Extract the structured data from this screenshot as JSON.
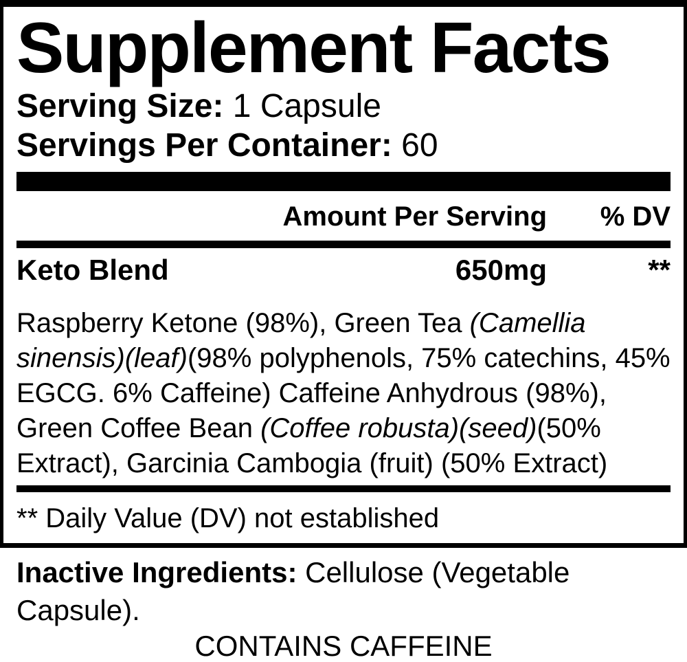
{
  "colors": {
    "ink": "#000000",
    "paper": "#ffffff"
  },
  "label": {
    "title": "Supplement Facts",
    "serving_size_label": "Serving Size:",
    "serving_size_value": "1 Capsule",
    "servings_per_container_label": "Servings Per Container:",
    "servings_per_container_value": "60",
    "column_header": {
      "amount": "Amount Per Serving",
      "dv": "% DV"
    },
    "blend": {
      "name": "Keto Blend",
      "amount": "650mg",
      "dv": "**"
    },
    "ingredients_lines": [
      [
        {
          "text": "Raspberry Ketone (98%), Green Tea ",
          "italic": false
        },
        {
          "text": "(Camellia",
          "italic": true
        }
      ],
      [
        {
          "text": "sinensis)(leaf)",
          "italic": true
        },
        {
          "text": "(98% polyphenols, 75% catechins, 45%",
          "italic": false
        }
      ],
      [
        {
          "text": "EGCG. 6% Caffeine) Caffeine Anhydrous (98%),",
          "italic": false
        }
      ],
      [
        {
          "text": "Green Coffee Bean ",
          "italic": false
        },
        {
          "text": "(Coffee robusta)(seed)",
          "italic": true
        },
        {
          "text": "(50%",
          "italic": false
        }
      ],
      [
        {
          "text": "Extract), Garcinia Cambogia (fruit) (50% Extract)",
          "italic": false
        }
      ]
    ],
    "footnote": "** Daily Value (DV) not established"
  },
  "below": {
    "inactive_label": "Inactive Ingredients:",
    "inactive_value": "Cellulose (Vegetable Capsule).",
    "contains": "CONTAINS CAFFEINE"
  }
}
